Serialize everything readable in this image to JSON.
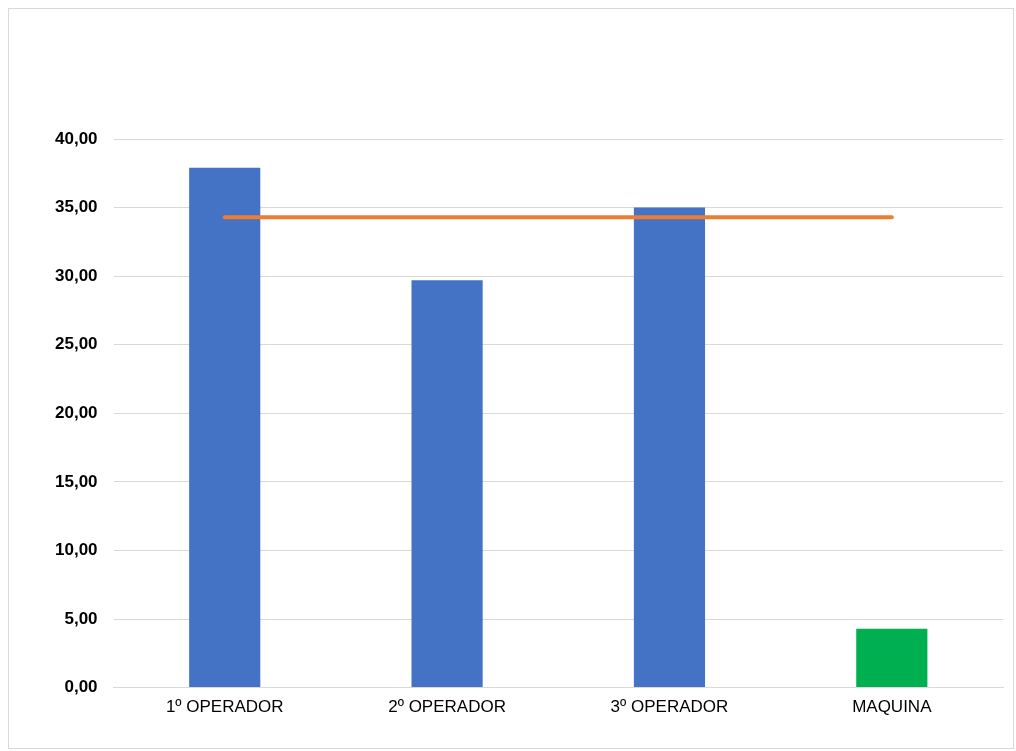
{
  "chart_data": {
    "type": "bar",
    "categories": [
      "1º OPERADOR",
      "2º OPERADOR",
      "3º OPERADOR",
      "MAQUINA"
    ],
    "series": [
      {
        "colors": [
          "#4472c4",
          "#4472c4",
          "#4472c4",
          "#00b050"
        ],
        "values": [
          37.9,
          29.7,
          35.0,
          4.3
        ]
      },
      {
        "type": "line",
        "color": "#ed7d31",
        "values": [
          34.3,
          34.3,
          34.3,
          34.3
        ]
      }
    ],
    "ylim": [
      0,
      40
    ],
    "yticks": [
      {
        "value": 0,
        "label": "0,00"
      },
      {
        "value": 5,
        "label": "5,00"
      },
      {
        "value": 10,
        "label": "10,00"
      },
      {
        "value": 15,
        "label": "15,00"
      },
      {
        "value": 20,
        "label": "20,00"
      },
      {
        "value": 25,
        "label": "25,00"
      },
      {
        "value": 30,
        "label": "30,00"
      },
      {
        "value": 35,
        "label": "35,00"
      },
      {
        "value": 40,
        "label": "40,00"
      }
    ],
    "grid": "y",
    "legend": false,
    "marker": "none"
  }
}
